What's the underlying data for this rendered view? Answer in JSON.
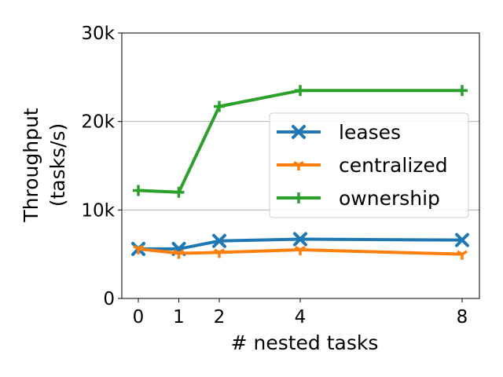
{
  "chart_data": {
    "type": "line",
    "xlabel": "# nested tasks",
    "ylabel_lines": [
      "Throughput",
      "(tasks/s)"
    ],
    "x": [
      0,
      1,
      2,
      4,
      8
    ],
    "x_tick_labels": [
      "0",
      "1",
      "2",
      "4",
      "8"
    ],
    "xlim": [
      -0.4,
      8.4
    ],
    "ylim": [
      0,
      30000
    ],
    "y_ticks": [
      0,
      10000,
      20000,
      30000
    ],
    "y_tick_labels": [
      "0",
      "10k",
      "20k",
      "30k"
    ],
    "grid": "horizontal",
    "legend_position": "center-right",
    "series": [
      {
        "name": "leases",
        "color": "#1f77b4",
        "marker": "x",
        "values": [
          5600,
          5600,
          6500,
          6700,
          6600
        ]
      },
      {
        "name": "centralized",
        "color": "#ff7f0e",
        "marker": "tri-down",
        "values": [
          5600,
          5100,
          5200,
          5500,
          5000
        ]
      },
      {
        "name": "ownership",
        "color": "#2ca02c",
        "marker": "plus",
        "values": [
          12200,
          12000,
          21700,
          23500,
          23500
        ]
      }
    ]
  }
}
